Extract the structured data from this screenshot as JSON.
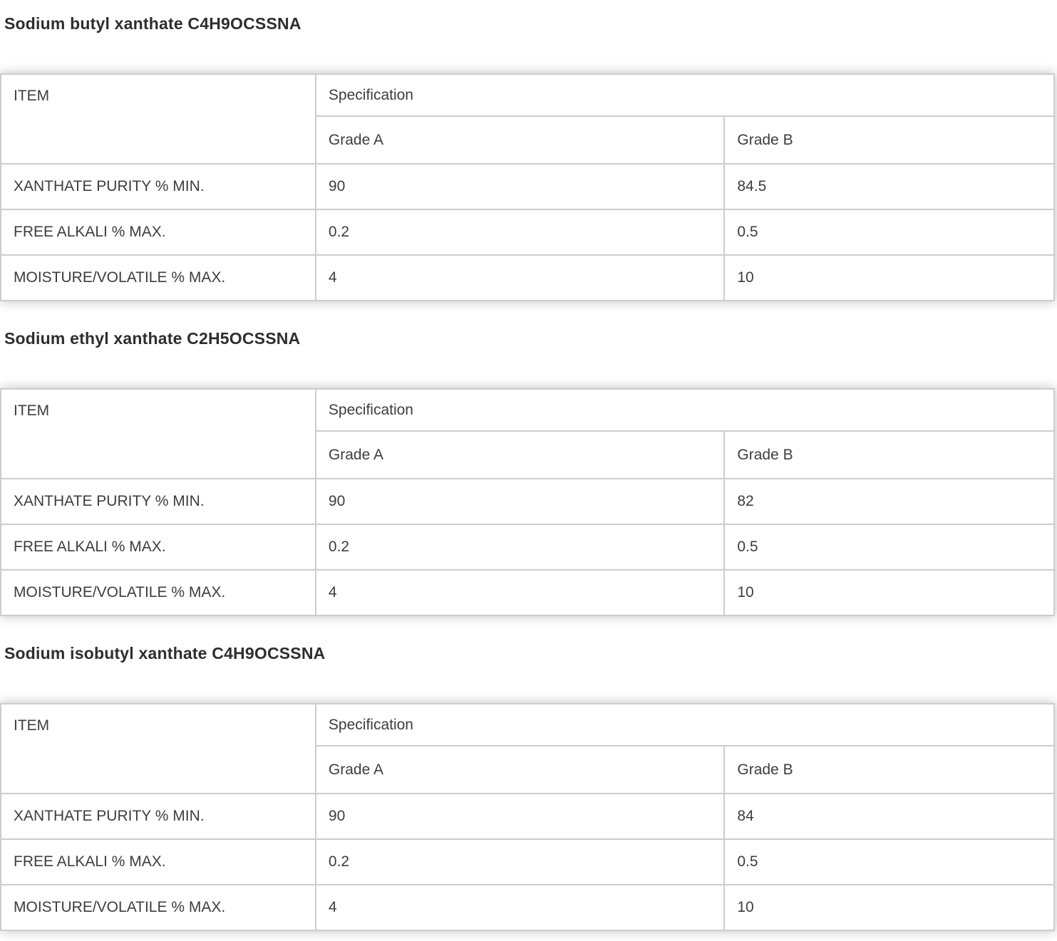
{
  "page": {
    "sections": [
      {
        "title": "Sodium butyl xanthate C4H9OCSSNA",
        "table": {
          "headers": {
            "item": "ITEM",
            "specification": "Specification",
            "grade_a": "Grade A",
            "grade_b": "Grade B"
          },
          "rows": [
            {
              "item": "XANTHATE PURITY % MIN.",
              "grade_a": "90",
              "grade_b": "84.5"
            },
            {
              "item": "FREE ALKALI % MAX.",
              "grade_a": "0.2",
              "grade_b": "0.5"
            },
            {
              "item": "MOISTURE/VOLATILE % MAX.",
              "grade_a": "4",
              "grade_b": "10"
            }
          ]
        }
      },
      {
        "title": "Sodium ethyl xanthate C2H5OCSSNA",
        "table": {
          "headers": {
            "item": "ITEM",
            "specification": "Specification",
            "grade_a": "Grade A",
            "grade_b": "Grade B"
          },
          "rows": [
            {
              "item": "XANTHATE PURITY % MIN.",
              "grade_a": "90",
              "grade_b": "82"
            },
            {
              "item": "FREE ALKALI % MAX.",
              "grade_a": "0.2",
              "grade_b": "0.5"
            },
            {
              "item": "MOISTURE/VOLATILE % MAX.",
              "grade_a": "4",
              "grade_b": "10"
            }
          ]
        }
      },
      {
        "title": "Sodium isobutyl xanthate C4H9OCSSNA",
        "table": {
          "headers": {
            "item": "ITEM",
            "specification": "Specification",
            "grade_a": "Grade A",
            "grade_b": "Grade B"
          },
          "rows": [
            {
              "item": "XANTHATE PURITY % MIN.",
              "grade_a": "90",
              "grade_b": "84"
            },
            {
              "item": "FREE ALKALI % MAX.",
              "grade_a": "0.2",
              "grade_b": "0.5"
            },
            {
              "item": "MOISTURE/VOLATILE % MAX.",
              "grade_a": "4",
              "grade_b": "10"
            }
          ]
        }
      }
    ],
    "colors": {
      "border": "#cdcdcd",
      "text": "#3d3d3d",
      "title_text": "#2e2e2e",
      "background": "#ffffff"
    }
  }
}
